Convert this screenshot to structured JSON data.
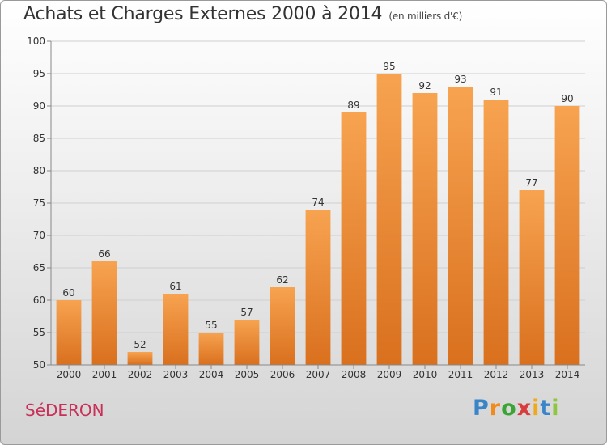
{
  "title": "Achats et Charges Externes 2000 à 2014",
  "subtitle": "(en milliers d'€)",
  "commune": "SéDERON",
  "logo": {
    "letters": [
      "P",
      "r",
      "o",
      "x",
      "i",
      "t",
      "i"
    ],
    "colors": [
      "#3a85c8",
      "#f08c1c",
      "#3aa535",
      "#d83c3c",
      "#f0a81c",
      "#3a85c8",
      "#8ec63f"
    ]
  },
  "colors": {
    "bar_top": "#f7a350",
    "bar_bottom": "#d9701e",
    "title": "#333333",
    "commune": "#c8305a"
  },
  "chart_data": {
    "type": "bar",
    "categories": [
      "2000",
      "2001",
      "2002",
      "2003",
      "2004",
      "2005",
      "2006",
      "2007",
      "2008",
      "2009",
      "2010",
      "2011",
      "2012",
      "2013",
      "2014"
    ],
    "values": [
      60,
      66,
      52,
      61,
      55,
      57,
      62,
      74,
      89,
      95,
      92,
      93,
      91,
      77,
      90
    ],
    "ylim": [
      50,
      100
    ],
    "yticks": [
      50,
      55,
      60,
      65,
      70,
      75,
      80,
      85,
      90,
      95,
      100
    ],
    "grid": true,
    "xlabel": "",
    "ylabel": ""
  }
}
